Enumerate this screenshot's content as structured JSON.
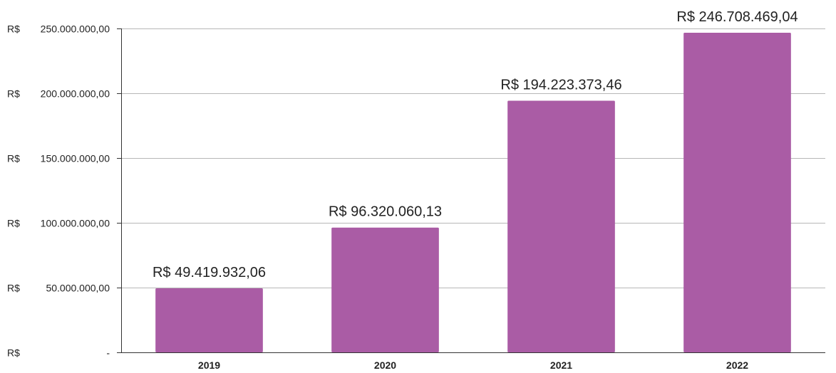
{
  "chart_data": {
    "type": "bar",
    "categories": [
      "2019",
      "2020",
      "2021",
      "2022"
    ],
    "values": [
      49419932.06,
      96320060.13,
      194223373.46,
      246708469.04
    ],
    "data_labels": [
      "R$ 49.419.932,06",
      "R$ 96.320.060,13",
      "R$ 194.223.373,46",
      "R$ 246.708.469,04"
    ],
    "y_ticks": [
      0,
      50000000,
      100000000,
      150000000,
      200000000,
      250000000
    ],
    "y_tick_labels": [
      {
        "currency": "R$",
        "amount": "-"
      },
      {
        "currency": "R$",
        "amount": "50.000.000,00"
      },
      {
        "currency": "R$",
        "amount": "100.000.000,00"
      },
      {
        "currency": "R$",
        "amount": "150.000.000,00"
      },
      {
        "currency": "R$",
        "amount": "200.000.000,00"
      },
      {
        "currency": "R$",
        "amount": "250.000.000,00"
      }
    ],
    "ylim": [
      0,
      250000000
    ],
    "title": "",
    "xlabel": "",
    "ylabel": "",
    "grid": true,
    "legend": "none",
    "colors": {
      "bar": "#aa5ca5",
      "grid": "#b7b7b7",
      "axis": "#333333",
      "text": "#222222"
    }
  }
}
